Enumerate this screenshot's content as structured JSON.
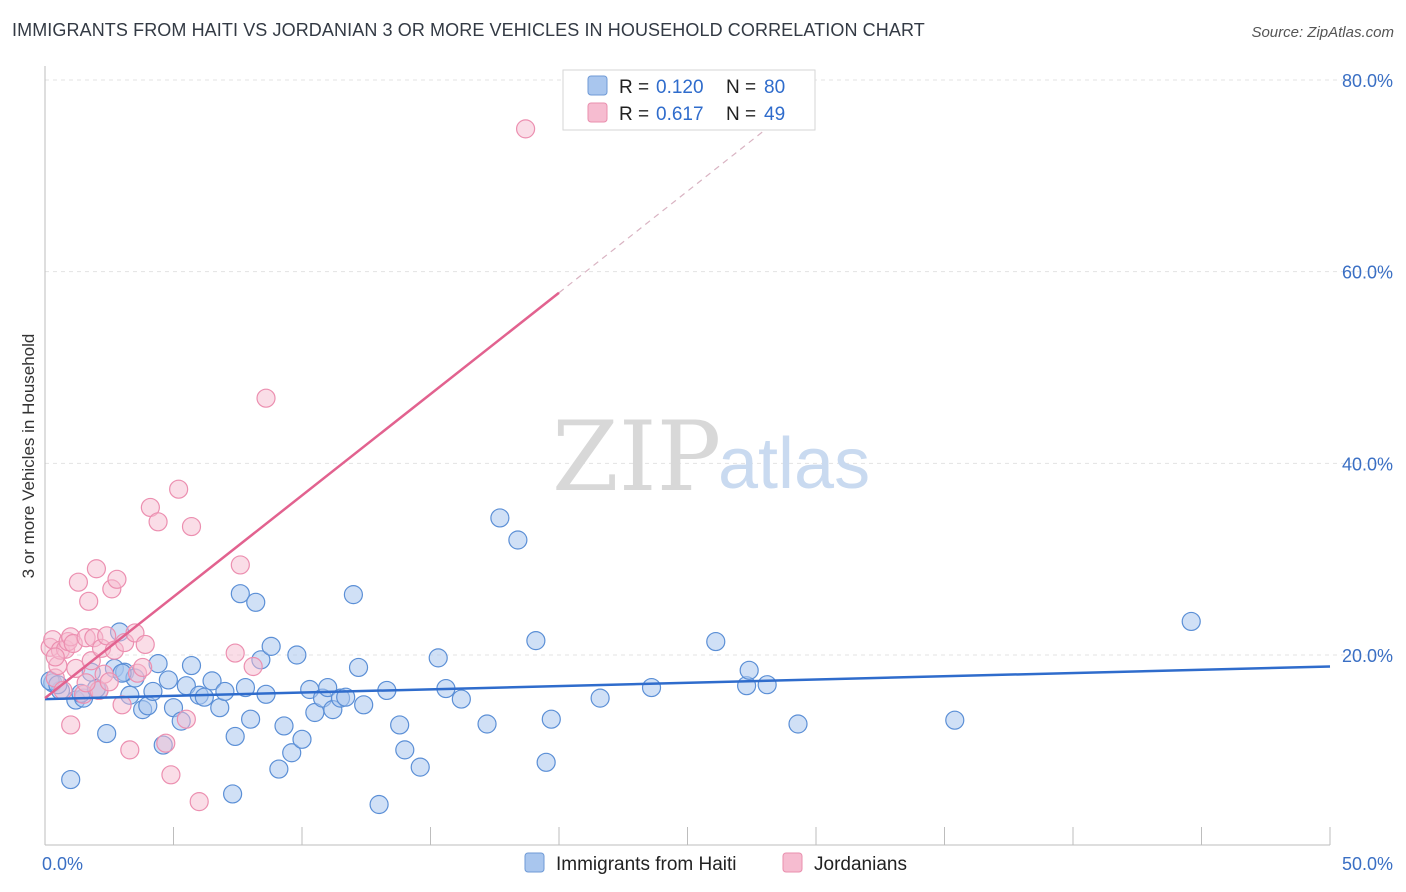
{
  "title": "IMMIGRANTS FROM HAITI VS JORDANIAN 3 OR MORE VEHICLES IN HOUSEHOLD CORRELATION CHART",
  "source": "Source: ZipAtlas.com",
  "watermark": {
    "zip": "ZIP",
    "atlas": "atlas"
  },
  "legend": {
    "r_label": "R =",
    "n_label": "N =",
    "rows": [
      {
        "r": "0.120",
        "n": "80",
        "fill": "#a9c6ee",
        "stroke": "#6f9ad6"
      },
      {
        "r": "0.617",
        "n": "49",
        "fill": "#f6bcd0",
        "stroke": "#e98fae"
      }
    ]
  },
  "bottom_legend": [
    "Immigrants from Haiti",
    "Jordanians"
  ],
  "chart_data": {
    "type": "scatter",
    "title": "",
    "xlabel": "",
    "ylabel": "3 or more Vehicles in Household",
    "xlim": [
      0,
      50
    ],
    "ylim": [
      0,
      80
    ],
    "x_tick_labels": [
      {
        "value": 0,
        "label": "0.0%"
      },
      {
        "value": 50,
        "label": "50.0%"
      }
    ],
    "y_tick_labels": [
      {
        "value": 20,
        "label": "20.0%"
      },
      {
        "value": 40,
        "label": "40.0%"
      },
      {
        "value": 60,
        "label": "60.0%"
      },
      {
        "value": 80,
        "label": "80.0%"
      }
    ],
    "colors": {
      "haiti": "#5b8fd6",
      "haiti_line": "#2f6ccc",
      "jordan": "#ec8fb0",
      "jordan_line": "#e2628f"
    },
    "series": [
      {
        "name": "Immigrants from Haiti",
        "trend": {
          "x0": 0,
          "y0": 15.4,
          "x1": 50,
          "y1": 18.8
        },
        "points": [
          [
            0.3,
            17.1
          ],
          [
            0.6,
            16.3
          ],
          [
            1.0,
            7.0
          ],
          [
            1.2,
            15.3
          ],
          [
            1.5,
            15.5
          ],
          [
            1.8,
            18.2
          ],
          [
            2.1,
            16.3
          ],
          [
            2.4,
            11.8
          ],
          [
            2.7,
            18.6
          ],
          [
            2.9,
            22.4
          ],
          [
            3.1,
            18.2
          ],
          [
            3.3,
            15.8
          ],
          [
            3.5,
            17.6
          ],
          [
            3.8,
            14.3
          ],
          [
            4.0,
            14.7
          ],
          [
            4.2,
            16.2
          ],
          [
            4.4,
            19.1
          ],
          [
            4.6,
            10.6
          ],
          [
            4.8,
            17.4
          ],
          [
            5.0,
            14.5
          ],
          [
            5.3,
            13.1
          ],
          [
            5.5,
            16.8
          ],
          [
            5.7,
            18.9
          ],
          [
            6.0,
            15.8
          ],
          [
            6.2,
            15.6
          ],
          [
            6.5,
            17.3
          ],
          [
            6.8,
            14.5
          ],
          [
            7.0,
            16.2
          ],
          [
            7.3,
            5.5
          ],
          [
            7.4,
            11.5
          ],
          [
            7.6,
            26.4
          ],
          [
            7.8,
            16.6
          ],
          [
            8.0,
            13.3
          ],
          [
            8.2,
            25.5
          ],
          [
            8.4,
            19.5
          ],
          [
            8.6,
            15.9
          ],
          [
            8.8,
            20.9
          ],
          [
            9.1,
            8.1
          ],
          [
            9.3,
            12.6
          ],
          [
            9.6,
            9.8
          ],
          [
            9.8,
            20.0
          ],
          [
            10.0,
            11.2
          ],
          [
            10.3,
            16.4
          ],
          [
            10.5,
            14.0
          ],
          [
            10.8,
            15.5
          ],
          [
            11.0,
            16.6
          ],
          [
            11.2,
            14.3
          ],
          [
            11.5,
            15.5
          ],
          [
            11.7,
            15.6
          ],
          [
            12.0,
            26.3
          ],
          [
            12.2,
            18.7
          ],
          [
            12.4,
            14.8
          ],
          [
            13.0,
            4.4
          ],
          [
            13.3,
            16.3
          ],
          [
            13.8,
            12.7
          ],
          [
            14.0,
            10.1
          ],
          [
            14.6,
            8.3
          ],
          [
            15.3,
            19.7
          ],
          [
            15.6,
            16.5
          ],
          [
            16.2,
            15.4
          ],
          [
            17.2,
            12.8
          ],
          [
            17.7,
            34.3
          ],
          [
            18.4,
            32.0
          ],
          [
            19.1,
            21.5
          ],
          [
            19.5,
            8.8
          ],
          [
            19.7,
            13.3
          ],
          [
            21.6,
            15.5
          ],
          [
            23.6,
            16.6
          ],
          [
            26.1,
            21.4
          ],
          [
            27.3,
            16.8
          ],
          [
            27.4,
            18.4
          ],
          [
            28.1,
            16.9
          ],
          [
            29.3,
            12.8
          ],
          [
            35.4,
            13.2
          ],
          [
            44.6,
            23.5
          ],
          [
            0.2,
            17.3
          ],
          [
            0.5,
            16.9
          ],
          [
            1.4,
            16.0
          ],
          [
            2.0,
            16.5
          ],
          [
            3.0,
            18.1
          ]
        ]
      },
      {
        "name": "Jordanians",
        "trend": {
          "x0": 0,
          "y0": 15.5,
          "x1": 20,
          "y1": 57.8,
          "ext_x1": 30,
          "ext_y1": 79.0
        },
        "points": [
          [
            0.2,
            20.8
          ],
          [
            0.3,
            21.6
          ],
          [
            0.4,
            17.6
          ],
          [
            0.5,
            18.9
          ],
          [
            0.6,
            20.5
          ],
          [
            0.7,
            16.3
          ],
          [
            0.8,
            20.6
          ],
          [
            0.9,
            21.4
          ],
          [
            1.0,
            21.9
          ],
          [
            1.1,
            21.2
          ],
          [
            1.2,
            18.6
          ],
          [
            1.3,
            27.6
          ],
          [
            1.5,
            15.9
          ],
          [
            1.6,
            21.8
          ],
          [
            1.7,
            25.6
          ],
          [
            1.8,
            19.4
          ],
          [
            1.9,
            21.8
          ],
          [
            2.0,
            29.0
          ],
          [
            2.1,
            16.3
          ],
          [
            2.2,
            20.7
          ],
          [
            2.3,
            18.0
          ],
          [
            2.4,
            22.0
          ],
          [
            2.5,
            17.2
          ],
          [
            2.6,
            26.9
          ],
          [
            2.7,
            20.5
          ],
          [
            2.8,
            27.9
          ],
          [
            3.0,
            14.8
          ],
          [
            3.1,
            21.3
          ],
          [
            3.3,
            10.1
          ],
          [
            3.5,
            22.3
          ],
          [
            3.6,
            18.1
          ],
          [
            3.8,
            18.7
          ],
          [
            3.9,
            21.1
          ],
          [
            4.1,
            35.4
          ],
          [
            4.4,
            33.9
          ],
          [
            4.7,
            10.8
          ],
          [
            4.9,
            7.5
          ],
          [
            5.2,
            37.3
          ],
          [
            5.5,
            13.3
          ],
          [
            5.7,
            33.4
          ],
          [
            6.0,
            4.7
          ],
          [
            7.4,
            20.2
          ],
          [
            7.6,
            29.4
          ],
          [
            8.1,
            18.8
          ],
          [
            8.6,
            46.8
          ],
          [
            18.7,
            74.9
          ],
          [
            0.4,
            19.8
          ],
          [
            1.0,
            12.7
          ],
          [
            1.6,
            17.1
          ]
        ]
      }
    ]
  }
}
